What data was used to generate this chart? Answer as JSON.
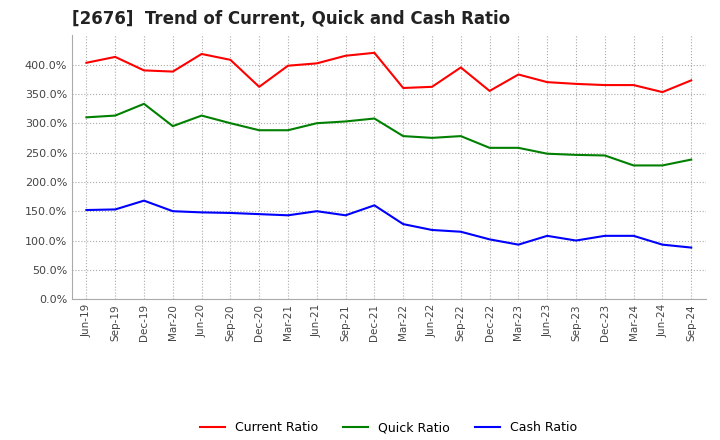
{
  "title": "[2676]  Trend of Current, Quick and Cash Ratio",
  "title_fontsize": 12,
  "x_labels": [
    "Jun-19",
    "Sep-19",
    "Dec-19",
    "Mar-20",
    "Jun-20",
    "Sep-20",
    "Dec-20",
    "Mar-21",
    "Jun-21",
    "Sep-21",
    "Dec-21",
    "Mar-22",
    "Jun-22",
    "Sep-22",
    "Dec-22",
    "Mar-23",
    "Jun-23",
    "Sep-23",
    "Dec-23",
    "Mar-24",
    "Jun-24",
    "Sep-24"
  ],
  "current_ratio": [
    403,
    413,
    390,
    388,
    418,
    408,
    362,
    398,
    402,
    415,
    420,
    360,
    362,
    395,
    355,
    383,
    370,
    367,
    365,
    365,
    353,
    373
  ],
  "quick_ratio": [
    310,
    313,
    333,
    295,
    313,
    300,
    288,
    288,
    300,
    303,
    308,
    278,
    275,
    278,
    258,
    258,
    248,
    246,
    245,
    228,
    228,
    238
  ],
  "cash_ratio": [
    152,
    153,
    168,
    150,
    148,
    147,
    145,
    143,
    150,
    143,
    160,
    128,
    118,
    115,
    102,
    93,
    108,
    100,
    108,
    108,
    93,
    88
  ],
  "current_color": "#FF0000",
  "quick_color": "#008000",
  "cash_color": "#0000FF",
  "ylim": [
    0,
    450
  ],
  "yticks": [
    0,
    50,
    100,
    150,
    200,
    250,
    300,
    350,
    400
  ],
  "background_color": "#ffffff",
  "grid_color": "#aaaaaa",
  "legend_labels": [
    "Current Ratio",
    "Quick Ratio",
    "Cash Ratio"
  ]
}
